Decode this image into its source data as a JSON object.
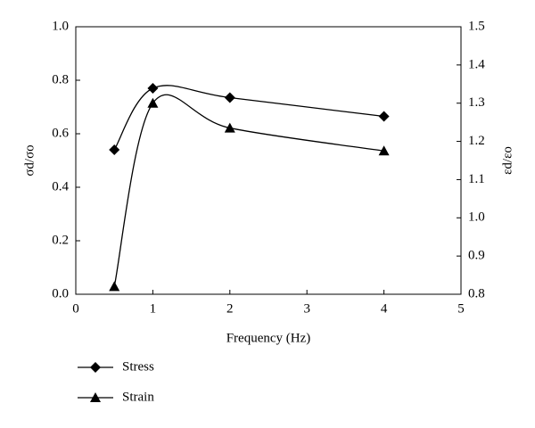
{
  "chart_data": {
    "type": "line",
    "xlabel": "Frequency (Hz)",
    "ylabel": "σd/σo",
    "y2label": "εd/εo",
    "x": [
      0.5,
      1,
      2,
      4
    ],
    "series": [
      {
        "name": "Stress",
        "color": "#000000",
        "marker": "diamond",
        "values": [
          0.54,
          0.77,
          0.735,
          0.665
        ]
      },
      {
        "name": "Strain",
        "color": "#000000",
        "marker": "triangle",
        "axis": "y2",
        "values": [
          0.82,
          1.3,
          1.235,
          1.175
        ]
      }
    ],
    "xlim": [
      0,
      5
    ],
    "xticks": [
      0,
      1,
      2,
      3,
      4,
      5
    ],
    "ylim": [
      0,
      1
    ],
    "yticks": [
      {
        "value": 0,
        "label": "0.0"
      },
      0.2,
      0.4,
      0.6,
      0.8,
      {
        "value": 1,
        "label": "1.0"
      }
    ],
    "y2lim": [
      0.8,
      1.5
    ],
    "y2ticks": [
      0.8,
      0.9,
      {
        "value": 1,
        "label": "1.0"
      },
      1.1,
      1.2,
      1.3,
      1.4,
      1.5
    ],
    "legend": "bottom-left"
  }
}
